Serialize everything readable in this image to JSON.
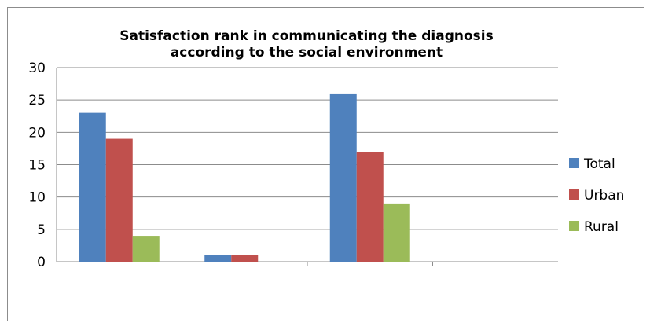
{
  "chart_data": {
    "type": "bar",
    "title_line1": "Satisfaction  rank in communicating the diagnosis",
    "title_line2": "according to the social environment",
    "categories": [
      "",
      "",
      "",
      ""
    ],
    "series": [
      {
        "name": "Total",
        "values": [
          23,
          1,
          26,
          0
        ],
        "color": "#4F81BD"
      },
      {
        "name": "Urban",
        "values": [
          19,
          1,
          17,
          0
        ],
        "color": "#C0504D"
      },
      {
        "name": "Rural",
        "values": [
          4,
          0,
          9,
          0
        ],
        "color": "#9BBB59"
      }
    ],
    "ylim": [
      0,
      30
    ],
    "yticks": [
      0,
      5,
      10,
      15,
      20,
      25,
      30
    ],
    "grid": true,
    "legend": "right"
  }
}
